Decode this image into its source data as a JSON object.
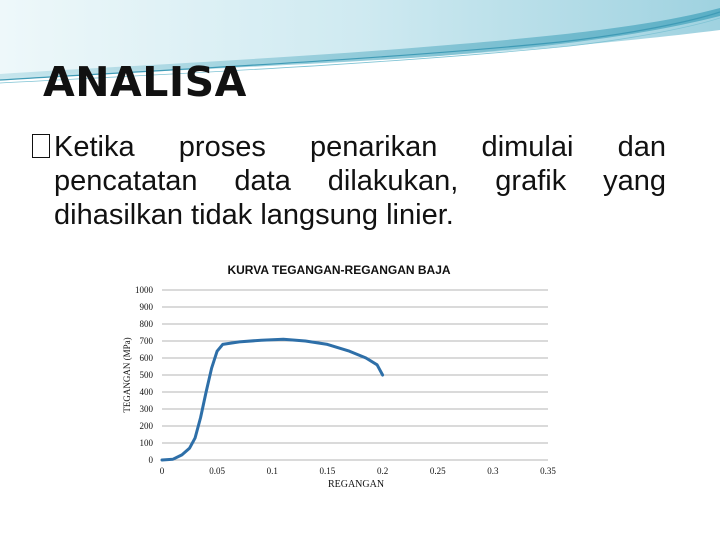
{
  "slide": {
    "title": "ANALISA",
    "bullet": "Ketika proses penarikan dimulai dan pencatatan data dilakukan, grafik yang dihasilkan tidak langsung linier."
  },
  "colors": {
    "accent": "#2f74b5",
    "line": "#2e6fa8",
    "grid": "#b4b4b4",
    "banner_light": "#d4edf2",
    "banner_dark": "#62b2c6"
  },
  "chart_data": {
    "type": "line",
    "title": "KURVA TEGANGAN-REGANGAN BAJA",
    "xlabel": "REGANGAN",
    "ylabel": "TEGANGAN (MPa)",
    "xlim": [
      0,
      0.35
    ],
    "ylim": [
      0,
      1000
    ],
    "x_ticks": [
      "0",
      "0.05",
      "0.1",
      "0.15",
      "0.2",
      "0.25",
      "0.3",
      "0.35"
    ],
    "y_ticks": [
      "0",
      "100",
      "200",
      "300",
      "400",
      "500",
      "600",
      "700",
      "800",
      "900",
      "1000"
    ],
    "grid": true,
    "series": [
      {
        "values": [
          [
            0,
            0
          ],
          [
            0.01,
            5
          ],
          [
            0.018,
            30
          ],
          [
            0.025,
            70
          ],
          [
            0.03,
            130
          ],
          [
            0.035,
            250
          ],
          [
            0.04,
            400
          ],
          [
            0.045,
            540
          ],
          [
            0.05,
            640
          ],
          [
            0.055,
            680
          ],
          [
            0.07,
            695
          ],
          [
            0.09,
            705
          ],
          [
            0.11,
            710
          ],
          [
            0.13,
            700
          ],
          [
            0.15,
            680
          ],
          [
            0.17,
            640
          ],
          [
            0.185,
            600
          ],
          [
            0.195,
            560
          ],
          [
            0.2,
            500
          ]
        ]
      }
    ]
  }
}
